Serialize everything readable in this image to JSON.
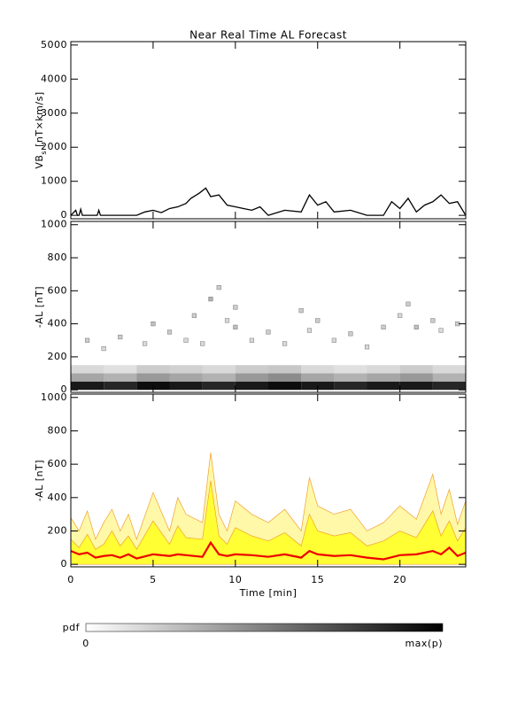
{
  "chart_data": [
    {
      "type": "line",
      "title": "Near Real Time AL Forecast",
      "y_label": "VB",
      "y_label_sub": "s",
      "y_label_unit": "[nT×km/s]",
      "xlim": [
        0,
        24
      ],
      "ylim": [
        -100,
        5100
      ],
      "yticks": [
        0,
        1000,
        2000,
        3000,
        4000,
        5000
      ],
      "color": "#000000",
      "x": [
        0,
        0.3,
        0.4,
        0.5,
        0.6,
        0.7,
        0.8,
        1.6,
        1.7,
        1.8,
        3,
        4,
        4.5,
        5,
        5.5,
        6,
        6.5,
        7,
        7.3,
        7.8,
        8.2,
        8.5,
        9,
        9.5,
        10,
        10.5,
        11,
        11.5,
        12,
        13,
        14,
        14.5,
        15,
        15.5,
        16,
        17,
        18,
        19,
        19.5,
        20,
        20.5,
        21,
        21.5,
        22,
        22.5,
        23,
        23.5,
        24
      ],
      "values": [
        0,
        150,
        0,
        0,
        180,
        0,
        0,
        0,
        150,
        0,
        0,
        0,
        100,
        150,
        80,
        200,
        250,
        350,
        500,
        650,
        800,
        550,
        600,
        300,
        250,
        200,
        150,
        250,
        0,
        150,
        100,
        600,
        300,
        400,
        100,
        150,
        0,
        0,
        400,
        200,
        500,
        100,
        300,
        400,
        600,
        350,
        400,
        0
      ]
    },
    {
      "type": "heatmap",
      "y_label": "-AL [nT]",
      "xlim": [
        0,
        24
      ],
      "ylim": [
        -15,
        1020
      ],
      "yticks": [
        0,
        200,
        400,
        600,
        800,
        1000
      ],
      "dense": {
        "x": [
          1,
          3,
          5,
          7,
          9,
          11,
          13,
          15,
          17,
          19,
          21,
          23,
          1,
          3,
          5,
          7,
          9,
          11,
          13,
          15,
          17,
          19,
          21,
          23,
          1,
          3,
          5,
          7,
          9,
          11,
          13,
          15,
          17,
          19,
          21,
          23
        ],
        "y": [
          25,
          25,
          25,
          25,
          25,
          25,
          25,
          25,
          25,
          25,
          25,
          25,
          75,
          75,
          75,
          75,
          75,
          75,
          75,
          75,
          75,
          75,
          75,
          75,
          125,
          125,
          125,
          125,
          125,
          125,
          125,
          125,
          125,
          125,
          125,
          125
        ],
        "weight": [
          0.9,
          0.85,
          0.95,
          0.9,
          0.85,
          0.9,
          0.95,
          0.9,
          0.85,
          0.9,
          0.9,
          0.85,
          0.35,
          0.3,
          0.4,
          0.35,
          0.3,
          0.4,
          0.45,
          0.35,
          0.3,
          0.35,
          0.4,
          0.3,
          0.15,
          0.12,
          0.2,
          0.18,
          0.15,
          0.2,
          0.22,
          0.15,
          0.12,
          0.15,
          0.2,
          0.15
        ]
      },
      "sparse": {
        "x": [
          1,
          2,
          3,
          4.5,
          5,
          6,
          7,
          7.5,
          8,
          8.5,
          9,
          9.5,
          10,
          10,
          11,
          12,
          13,
          14,
          14.5,
          15,
          16,
          17,
          18,
          19,
          20,
          20.5,
          21,
          22,
          22.5,
          23.5
        ],
        "y": [
          300,
          250,
          320,
          280,
          400,
          350,
          300,
          450,
          280,
          550,
          620,
          420,
          500,
          380,
          300,
          350,
          280,
          480,
          360,
          420,
          300,
          340,
          260,
          380,
          450,
          520,
          380,
          420,
          360,
          400
        ],
        "weight": [
          0.2,
          0.15,
          0.2,
          0.15,
          0.25,
          0.2,
          0.15,
          0.2,
          0.15,
          0.3,
          0.2,
          0.15,
          0.2,
          0.25,
          0.15,
          0.2,
          0.15,
          0.2,
          0.15,
          0.2,
          0.15,
          0.2,
          0.15,
          0.2,
          0.15,
          0.2,
          0.25,
          0.2,
          0.15,
          0.2
        ]
      }
    },
    {
      "type": "area",
      "y_label": "-AL [nT]",
      "x_label": "Time [min]",
      "xlim": [
        0,
        24
      ],
      "ylim": [
        -15,
        1020
      ],
      "yticks": [
        0,
        200,
        400,
        600,
        800,
        1000
      ],
      "xticks": [
        0,
        5,
        10,
        15,
        20
      ],
      "x": [
        0,
        0.5,
        1,
        1.5,
        2,
        2.5,
        3,
        3.5,
        4,
        5,
        6,
        6.5,
        7,
        8,
        8.5,
        9,
        9.5,
        10,
        11,
        12,
        13,
        14,
        14.5,
        15,
        16,
        17,
        18,
        19,
        20,
        21,
        22,
        22.5,
        23,
        23.5,
        24
      ],
      "upper": {
        "color": "#fff8a8",
        "values": [
          280,
          200,
          320,
          150,
          250,
          330,
          200,
          300,
          150,
          430,
          200,
          400,
          300,
          250,
          670,
          300,
          200,
          380,
          300,
          250,
          330,
          200,
          520,
          350,
          300,
          330,
          200,
          250,
          350,
          270,
          540,
          300,
          450,
          240,
          380
        ]
      },
      "inner": {
        "color": "#ffff33",
        "values": [
          150,
          100,
          180,
          90,
          120,
          200,
          110,
          170,
          90,
          260,
          120,
          230,
          160,
          150,
          500,
          170,
          120,
          220,
          170,
          140,
          190,
          110,
          300,
          200,
          170,
          190,
          110,
          140,
          200,
          160,
          320,
          170,
          260,
          140,
          220
        ]
      },
      "median": {
        "color": "#ee0000",
        "values": [
          80,
          60,
          70,
          40,
          50,
          55,
          40,
          60,
          35,
          60,
          50,
          60,
          55,
          45,
          130,
          60,
          50,
          60,
          55,
          45,
          60,
          40,
          80,
          60,
          50,
          55,
          40,
          30,
          55,
          60,
          80,
          60,
          100,
          50,
          70
        ]
      }
    }
  ],
  "colorbar": {
    "label": "pdf",
    "min_label": "0",
    "max_label": "max(p)"
  }
}
